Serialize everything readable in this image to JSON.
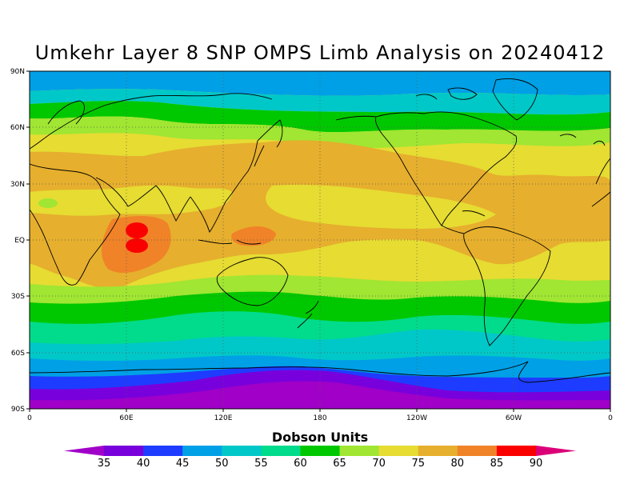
{
  "title": "Umkehr Layer 8 SNP OMPS Limb Analysis on 20240412",
  "lat_labels": [
    "90N",
    "60N",
    "30N",
    "EQ",
    "30S",
    "60S",
    "90S"
  ],
  "lon_labels": [
    "0",
    "60E",
    "120E",
    "180",
    "120W",
    "60W",
    "0"
  ],
  "colorbar": {
    "title": "Dobson Units",
    "ticks": [
      "35",
      "40",
      "45",
      "50",
      "55",
      "60",
      "65",
      "70",
      "75",
      "80",
      "85",
      "90"
    ],
    "colors": [
      "#a000c8",
      "#7800dc",
      "#1e3cff",
      "#00a0e6",
      "#00c8c8",
      "#00dc8c",
      "#00c800",
      "#a0e632",
      "#e6dc32",
      "#e6af2d",
      "#f08228",
      "#fa0000",
      "#dc0078"
    ]
  },
  "chart_data": {
    "type": "heatmap",
    "title": "Umkehr Layer 8 SNP OMPS Limb Analysis on 20240412",
    "units": "Dobson Units",
    "levels": [
      35,
      40,
      45,
      50,
      55,
      60,
      65,
      70,
      75,
      80,
      85,
      90
    ],
    "zonal_bands": [
      {
        "lat": "90N-80N",
        "class": "50-55"
      },
      {
        "lat": "75N-68N",
        "class": "55-60"
      },
      {
        "lat": "68N-60N",
        "class": "60-65"
      },
      {
        "lat": "60N-50N",
        "class": "65-70"
      },
      {
        "lat": "45N-25S",
        "class": "75-80"
      },
      {
        "lat": "30S-40S",
        "class": "65-70"
      },
      {
        "lat": "40S-50S",
        "class": "60-65"
      },
      {
        "lat": "50S-60S",
        "class": "55-60"
      },
      {
        "lat": "65S-70S",
        "class": "50-55"
      },
      {
        "lat": "70S-75S",
        "class": "45-50"
      },
      {
        "lat": "75S-90S",
        "class": "35-40"
      }
    ],
    "maxima": [
      {
        "lon": "65E",
        "lat": "5N-5S",
        "class": "85-90"
      }
    ]
  }
}
